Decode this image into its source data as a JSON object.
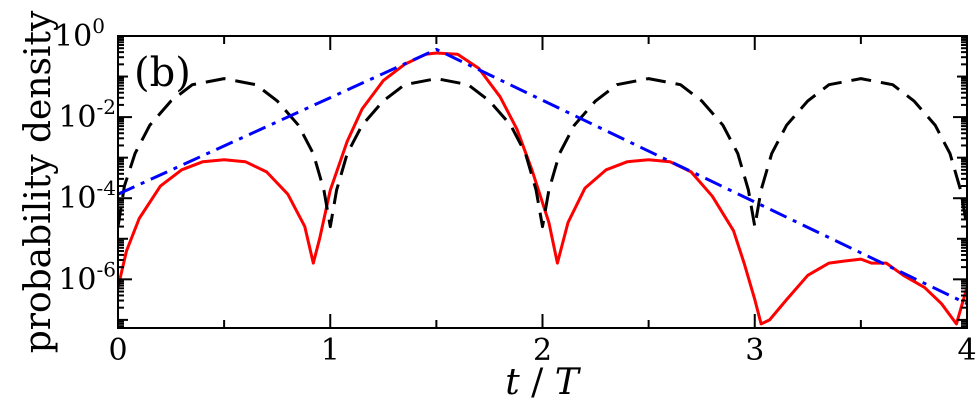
{
  "chart_data": {
    "type": "line",
    "title": "",
    "panel_label": "(b)",
    "xlabel": "t / T",
    "ylabel": "probability density",
    "xlim": [
      0,
      4
    ],
    "ylog": true,
    "ylim_exp": [
      -7.2,
      0
    ],
    "x_ticks": [
      0,
      1,
      2,
      3,
      4
    ],
    "x_tick_labels": [
      "0",
      "1",
      "2",
      "3",
      "4"
    ],
    "y_ticks_exp": [
      0,
      -2,
      -4,
      -6
    ],
    "y_tick_labels": [
      {
        "base": "10",
        "exp": "0"
      },
      {
        "base": "10",
        "exp": "-2"
      },
      {
        "base": "10",
        "exp": "-4"
      },
      {
        "base": "10",
        "exp": "-6"
      }
    ],
    "grid": false,
    "series": [
      {
        "color": "#ff0000",
        "style": "solid",
        "points": [
          [
            0.0,
            -6.2
          ],
          [
            0.04,
            -5.3
          ],
          [
            0.1,
            -4.5
          ],
          [
            0.2,
            -3.7
          ],
          [
            0.3,
            -3.3
          ],
          [
            0.4,
            -3.1
          ],
          [
            0.5,
            -3.05
          ],
          [
            0.6,
            -3.1
          ],
          [
            0.7,
            -3.35
          ],
          [
            0.8,
            -3.9
          ],
          [
            0.88,
            -4.7
          ],
          [
            0.92,
            -5.6
          ],
          [
            0.95,
            -5.0
          ],
          [
            1.0,
            -3.8
          ],
          [
            1.08,
            -2.6
          ],
          [
            1.15,
            -1.8
          ],
          [
            1.25,
            -1.1
          ],
          [
            1.35,
            -0.7
          ],
          [
            1.45,
            -0.45
          ],
          [
            1.5,
            -0.42
          ],
          [
            1.6,
            -0.45
          ],
          [
            1.7,
            -0.8
          ],
          [
            1.8,
            -1.5
          ],
          [
            1.88,
            -2.3
          ],
          [
            1.95,
            -3.3
          ],
          [
            2.03,
            -4.6
          ],
          [
            2.07,
            -5.6
          ],
          [
            2.12,
            -4.6
          ],
          [
            2.2,
            -3.75
          ],
          [
            2.3,
            -3.3
          ],
          [
            2.4,
            -3.1
          ],
          [
            2.5,
            -3.05
          ],
          [
            2.6,
            -3.1
          ],
          [
            2.7,
            -3.35
          ],
          [
            2.8,
            -3.95
          ],
          [
            2.9,
            -4.8
          ],
          [
            2.95,
            -5.6
          ],
          [
            3.0,
            -6.5
          ],
          [
            3.03,
            -7.1
          ],
          [
            3.07,
            -7.0
          ],
          [
            3.15,
            -6.5
          ],
          [
            3.25,
            -5.9
          ],
          [
            3.35,
            -5.6
          ],
          [
            3.42,
            -5.55
          ],
          [
            3.5,
            -5.5
          ],
          [
            3.55,
            -5.6
          ],
          [
            3.62,
            -5.6
          ],
          [
            3.7,
            -5.9
          ],
          [
            3.8,
            -6.2
          ],
          [
            3.88,
            -6.6
          ],
          [
            3.95,
            -7.1
          ],
          [
            4.0,
            -6.2
          ]
        ]
      },
      {
        "color": "#000000",
        "style": "dashed",
        "points": [
          [
            0.0,
            -4.7
          ],
          [
            0.03,
            -3.7
          ],
          [
            0.08,
            -2.9
          ],
          [
            0.15,
            -2.2
          ],
          [
            0.25,
            -1.6
          ],
          [
            0.35,
            -1.2
          ],
          [
            0.5,
            -1.05
          ],
          [
            0.65,
            -1.2
          ],
          [
            0.75,
            -1.6
          ],
          [
            0.85,
            -2.2
          ],
          [
            0.92,
            -2.9
          ],
          [
            0.97,
            -3.8
          ],
          [
            1.0,
            -4.7
          ],
          [
            1.03,
            -3.8
          ],
          [
            1.08,
            -2.9
          ],
          [
            1.15,
            -2.2
          ],
          [
            1.25,
            -1.6
          ],
          [
            1.35,
            -1.2
          ],
          [
            1.5,
            -1.05
          ],
          [
            1.65,
            -1.2
          ],
          [
            1.75,
            -1.6
          ],
          [
            1.85,
            -2.2
          ],
          [
            1.92,
            -2.9
          ],
          [
            1.97,
            -3.8
          ],
          [
            2.0,
            -4.7
          ],
          [
            2.03,
            -3.8
          ],
          [
            2.08,
            -2.9
          ],
          [
            2.15,
            -2.2
          ],
          [
            2.25,
            -1.6
          ],
          [
            2.35,
            -1.2
          ],
          [
            2.5,
            -1.05
          ],
          [
            2.65,
            -1.2
          ],
          [
            2.75,
            -1.6
          ],
          [
            2.85,
            -2.2
          ],
          [
            2.92,
            -2.9
          ],
          [
            2.97,
            -3.8
          ],
          [
            3.0,
            -4.7
          ],
          [
            3.03,
            -3.8
          ],
          [
            3.08,
            -2.9
          ],
          [
            3.15,
            -2.2
          ],
          [
            3.25,
            -1.6
          ],
          [
            3.35,
            -1.2
          ],
          [
            3.5,
            -1.05
          ],
          [
            3.65,
            -1.2
          ],
          [
            3.75,
            -1.6
          ],
          [
            3.85,
            -2.2
          ],
          [
            3.92,
            -2.9
          ],
          [
            3.97,
            -3.8
          ],
          [
            4.0,
            -4.7
          ]
        ]
      },
      {
        "color": "#0000ff",
        "style": "dashdot",
        "points": [
          [
            0.0,
            -3.9
          ],
          [
            1.5,
            -0.33
          ],
          [
            4.0,
            -6.6
          ]
        ]
      }
    ]
  }
}
